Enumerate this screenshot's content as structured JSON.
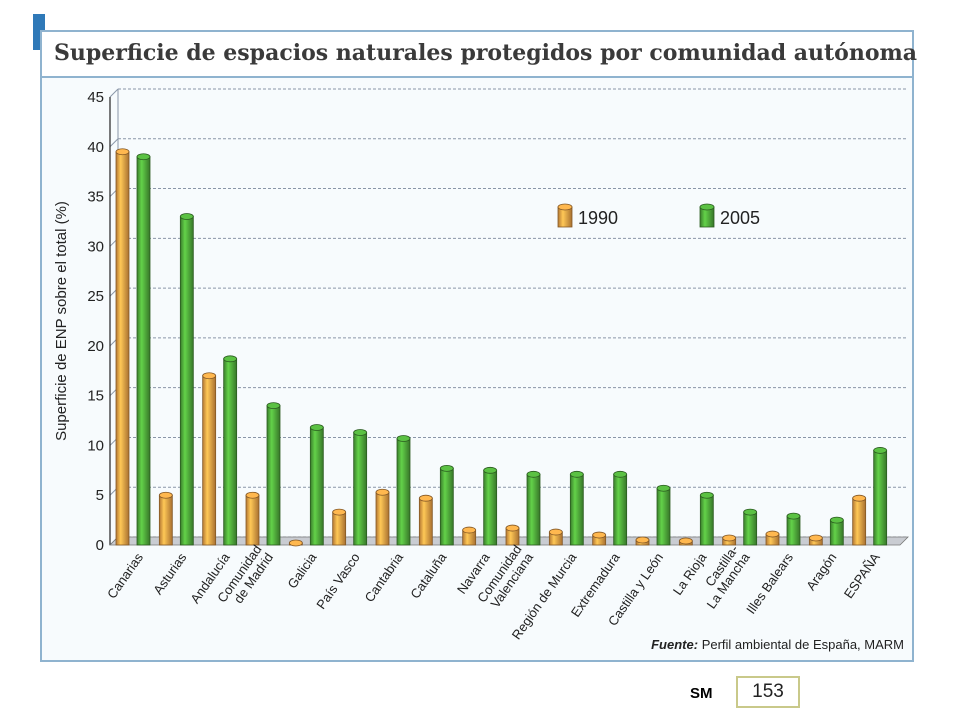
{
  "header": {
    "title": "Superficie de espacios naturales protegidos por comunidad autónoma"
  },
  "source": {
    "label": "Fuente:",
    "text": "Perfil ambiental de España, MARM"
  },
  "footer": {
    "publisher": "SM",
    "page_number": "153"
  },
  "colors": {
    "s1990": "#f0a045",
    "s2005": "#4fa83a",
    "grid": "#8a96a8",
    "axis": "#333333"
  },
  "chart_data": {
    "type": "bar",
    "title": "Superficie de espacios naturales protegidos por comunidad autónoma",
    "ylabel": "Superficie de ENP sobre el total (%)",
    "xlabel": "",
    "ylim": [
      0,
      45
    ],
    "yticks": [
      "0",
      "5",
      "10",
      "15",
      "20",
      "25",
      "30",
      "35",
      "40",
      "45"
    ],
    "grid": true,
    "legend_position": "top-right",
    "categories": [
      "Canarias",
      "Asturias",
      "Andalucía",
      "Comunidad de Madrid",
      "Galicia",
      "País Vasco",
      "Cantabria",
      "Cataluña",
      "Navarra",
      "Comunidad Valenciana",
      "Región de Murcia",
      "Extremadura",
      "Castilla y León",
      "La Rioja",
      "Castilla-La Mancha",
      "Illes Balears",
      "Aragón",
      "ESPAÑA"
    ],
    "category_labels": [
      [
        "Canarias"
      ],
      [
        "Asturias"
      ],
      [
        "Andalucía"
      ],
      [
        "Comunidad",
        "de Madrid"
      ],
      [
        "Galicia"
      ],
      [
        "País Vasco"
      ],
      [
        "Cantabria"
      ],
      [
        "Cataluña"
      ],
      [
        "Navarra"
      ],
      [
        "Comunidad",
        "Valenciana"
      ],
      [
        "Región de Murcia"
      ],
      [
        "Extremadura"
      ],
      [
        "Castilla y León"
      ],
      [
        "La Rioja"
      ],
      [
        "Castilla-",
        "La Mancha"
      ],
      [
        "Illes Balears"
      ],
      [
        "Aragón"
      ],
      [
        "ESPAÑA"
      ]
    ],
    "series": [
      {
        "name": "1990",
        "values": [
          39.5,
          5,
          17,
          5,
          0.2,
          3.3,
          5.3,
          4.7,
          1.5,
          1.7,
          1.3,
          1,
          0.5,
          0.4,
          0.7,
          1.1,
          0.7,
          4.7
        ]
      },
      {
        "name": "2005",
        "values": [
          39,
          33,
          18.7,
          14,
          11.8,
          11.3,
          10.7,
          7.7,
          7.5,
          7.1,
          7.1,
          7.1,
          5.7,
          5,
          3.3,
          2.9,
          2.5,
          9.5
        ]
      }
    ]
  }
}
